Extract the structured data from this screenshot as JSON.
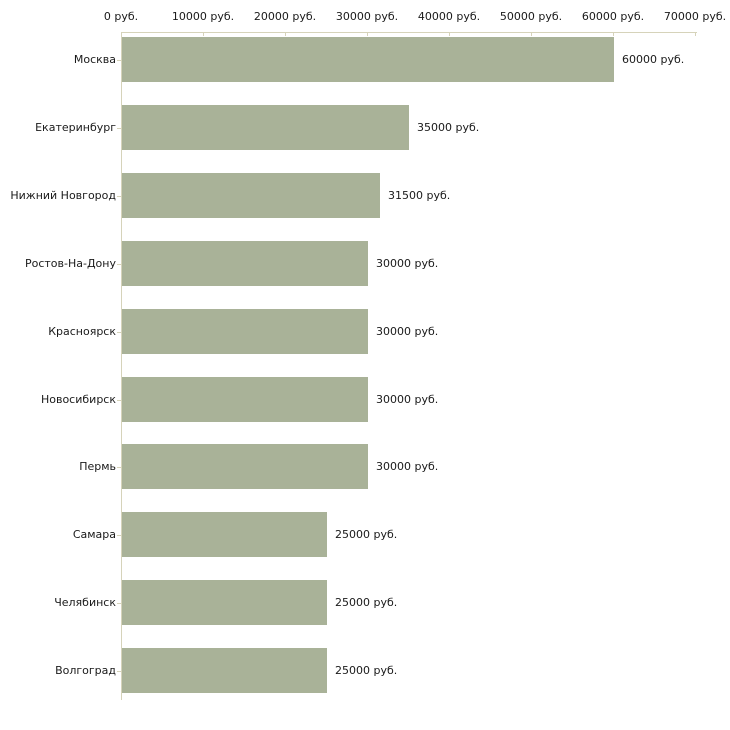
{
  "chart_data": {
    "type": "bar",
    "orientation": "horizontal",
    "title": "",
    "xlabel": "",
    "ylabel": "",
    "categories": [
      "Москва",
      "Екатеринбург",
      "Нижний Новгород",
      "Ростов-На-Дону",
      "Красноярск",
      "Новосибирск",
      "Пермь",
      "Самара",
      "Челябинск",
      "Волгоград"
    ],
    "values": [
      60000,
      35000,
      31500,
      30000,
      30000,
      30000,
      30000,
      25000,
      25000,
      25000
    ],
    "value_labels": [
      "60000 руб.",
      "35000 руб.",
      "31500 руб.",
      "30000 руб.",
      "30000 руб.",
      "30000 руб.",
      "30000 руб.",
      "25000 руб.",
      "25000 руб.",
      "25000 руб."
    ],
    "x_ticks": [
      0,
      10000,
      20000,
      30000,
      40000,
      50000,
      60000,
      70000
    ],
    "x_tick_labels": [
      "0 руб.",
      "10000 руб.",
      "20000 руб.",
      "30000 руб.",
      "40000 руб.",
      "50000 руб.",
      "60000 руб.",
      "70000 руб."
    ],
    "xlim": [
      0,
      70000
    ],
    "grid": false,
    "legend": "none",
    "colors": {
      "bar": "#a9b298",
      "axis": "#d6d3ba",
      "text": "#1a1a1a",
      "background": "#ffffff"
    }
  }
}
